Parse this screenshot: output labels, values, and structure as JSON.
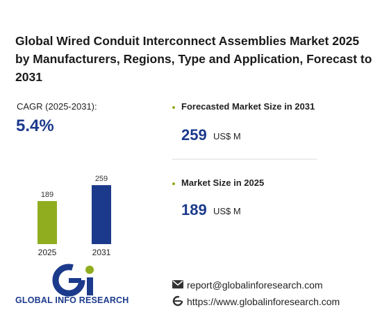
{
  "title": "Global Wired Conduit Interconnect Assemblies Market 2025 by Manufacturers, Regions, Type and Application, Forecast to 2031",
  "cagr": {
    "label": "CAGR (2025-2031):",
    "value": "5.4%"
  },
  "stats": [
    {
      "label": "Forecasted Market Size in 2031",
      "value": 259,
      "unit": "US$ M"
    },
    {
      "label": "Market Size in 2025",
      "value": 189,
      "unit": "US$ M"
    }
  ],
  "chart_data": {
    "type": "bar",
    "categories": [
      "2025",
      "2031"
    ],
    "values": [
      189,
      259
    ],
    "colors": [
      "#8fad1f",
      "#1c3a8c"
    ]
  },
  "logo": {
    "text": "GLOBAL INFO RESEARCH"
  },
  "contact": {
    "email": "report@globalinforesearch.com",
    "website": "https://www.globalinforesearch.com"
  }
}
